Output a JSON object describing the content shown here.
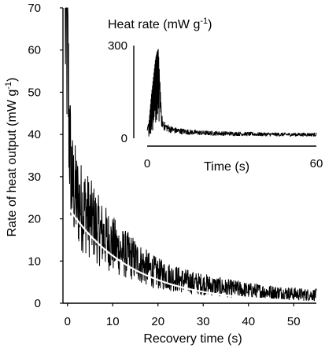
{
  "chart_data": [
    {
      "type": "line",
      "xlabel": "Recovery time (s)",
      "ylabel": "Rate of heat output (mW g",
      "ylabel_sup": "-1",
      "ylabel_close": ")",
      "xlim": [
        -1,
        55
      ],
      "ylim": [
        0,
        70
      ],
      "xticks": [
        0,
        10,
        20,
        30,
        40,
        50
      ],
      "yticks": [
        0,
        10,
        20,
        30,
        40,
        50,
        60,
        70
      ],
      "series": [
        {
          "kind": "measured",
          "color": "#000000",
          "envelope_x": [
            -0.5,
            0,
            0.3,
            0.6,
            1,
            2,
            3,
            4,
            5,
            6,
            7,
            8,
            10,
            12,
            14,
            16,
            18,
            20,
            22,
            25,
            28,
            30,
            33,
            35,
            38,
            40,
            43,
            45,
            48,
            50,
            53,
            55
          ],
          "envelope_y": [
            70,
            62,
            45,
            35,
            28,
            25,
            23,
            22,
            20,
            19,
            17,
            16,
            14,
            12,
            11,
            9.5,
            8,
            7,
            6.5,
            5.5,
            4.8,
            4.5,
            4,
            3.6,
            3.3,
            3,
            2.8,
            2.6,
            2.4,
            2.2,
            2,
            2
          ]
        },
        {
          "kind": "fit",
          "color": "#ffffff",
          "amplitude": 23,
          "tau": 14,
          "x_range": [
            0,
            48
          ]
        }
      ]
    },
    {
      "type": "line",
      "title": "Heat rate (mW g",
      "title_sup": "-1",
      "title_close": ")",
      "xlabel": "Time (s)",
      "xlim": [
        0,
        60
      ],
      "ylim": [
        0,
        300
      ],
      "xticks": [
        0,
        60
      ],
      "yticks": [
        0,
        300
      ],
      "series": [
        {
          "kind": "measured",
          "color": "#000000",
          "envelope_x": [
            0,
            0.5,
            1,
            1.5,
            2,
            2.5,
            3,
            3.5,
            4,
            5,
            6,
            8,
            10,
            15,
            20,
            30,
            40,
            50,
            60
          ],
          "envelope_y": [
            20,
            40,
            90,
            140,
            180,
            220,
            260,
            280,
            290,
            60,
            40,
            30,
            25,
            20,
            17,
            15,
            13,
            12,
            12
          ]
        }
      ]
    }
  ]
}
